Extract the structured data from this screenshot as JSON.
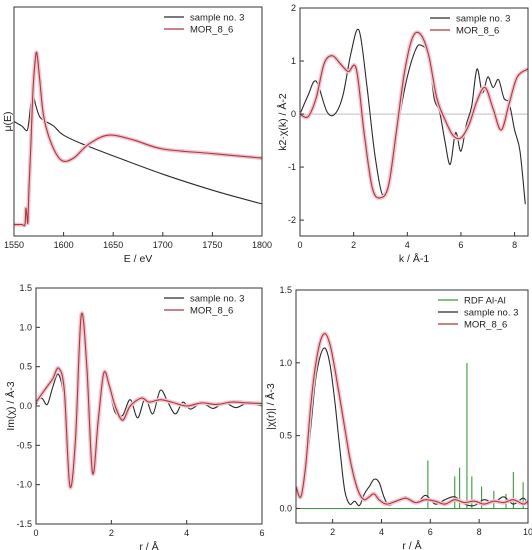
{
  "colors": {
    "black": "#2b2b2b",
    "red": "#b0383a",
    "green": "#3a9a3a",
    "halo": "#f2c4cf"
  },
  "chart_data": [
    {
      "type": "line",
      "xlabel": "E / eV",
      "ylabel": "μ(E)",
      "xlim": [
        1550,
        1800
      ],
      "ylim": [
        0.0,
        1.0
      ],
      "xticks": [
        1550,
        1600,
        1650,
        1700,
        1750,
        1800
      ],
      "yticks": [],
      "legend_position": "top-right",
      "series": [
        {
          "name": "sample no. 3",
          "color": "black",
          "x": [
            1550,
            1558,
            1563,
            1565,
            1567,
            1569,
            1572,
            1576,
            1582,
            1590,
            1600,
            1620,
            1650,
            1700,
            1750,
            1800
          ],
          "y": [
            0.5,
            0.48,
            0.46,
            0.5,
            0.58,
            0.62,
            0.57,
            0.52,
            0.5,
            0.48,
            0.44,
            0.4,
            0.35,
            0.27,
            0.2,
            0.14
          ]
        },
        {
          "name": "MOR_8_6",
          "color": "red",
          "x": [
            1550,
            1558,
            1561,
            1562,
            1563,
            1564,
            1565,
            1567,
            1569,
            1571,
            1573,
            1576,
            1580,
            1588,
            1598,
            1610,
            1625,
            1645,
            1670,
            1700,
            1750,
            1800
          ],
          "y": [
            0.05,
            0.05,
            0.05,
            0.12,
            0.09,
            0.06,
            0.2,
            0.4,
            0.62,
            0.75,
            0.8,
            0.68,
            0.52,
            0.4,
            0.33,
            0.34,
            0.4,
            0.44,
            0.42,
            0.38,
            0.36,
            0.34
          ]
        }
      ]
    },
    {
      "type": "line",
      "xlabel": "k / Å-1",
      "ylabel": "k2·χ(k) / Å-2",
      "xlim": [
        0,
        8.5
      ],
      "ylim": [
        -2.3,
        2.0
      ],
      "xticks": [
        0,
        2,
        4,
        6,
        8
      ],
      "yticks": [
        -2,
        -1,
        0,
        1,
        2
      ],
      "legend_position": "top-right",
      "series": [
        {
          "name": "sample no. 3",
          "color": "black",
          "x": [
            0,
            0.3,
            0.6,
            1.0,
            1.3,
            1.6,
            1.9,
            2.2,
            2.5,
            2.8,
            3.1,
            3.4,
            3.7,
            4.0,
            4.3,
            4.5,
            4.8,
            5.0,
            5.2,
            5.4,
            5.6,
            5.8,
            6.0,
            6.2,
            6.4,
            6.6,
            6.8,
            7.0,
            7.2,
            7.4,
            7.6,
            7.8,
            8.0,
            8.2,
            8.4
          ],
          "y": [
            0,
            0.35,
            0.62,
            0.05,
            0,
            0.35,
            1.15,
            1.58,
            0.5,
            -0.8,
            -1.55,
            -1.2,
            -0.1,
            0.7,
            1.2,
            1.3,
            1.1,
            0.3,
            0.05,
            -0.5,
            -0.95,
            -0.35,
            -0.7,
            -0.2,
            0.15,
            0.85,
            0.4,
            0.7,
            0.5,
            0.65,
            0.3,
            0.2,
            -0.3,
            -0.7,
            -1.7
          ]
        },
        {
          "name": "MOR_8_6",
          "color": "red",
          "x": [
            0,
            0.3,
            0.6,
            0.9,
            1.2,
            1.5,
            1.8,
            2.1,
            2.4,
            2.7,
            3.0,
            3.3,
            3.6,
            3.9,
            4.2,
            4.5,
            4.8,
            5.1,
            5.4,
            5.7,
            6.0,
            6.3,
            6.6,
            6.9,
            7.2,
            7.5,
            7.8,
            8.1,
            8.5
          ],
          "y": [
            0,
            -0.05,
            0.3,
            0.95,
            1.1,
            0.95,
            0.8,
            0.85,
            -0.4,
            -1.4,
            -1.58,
            -1.35,
            -0.3,
            0.8,
            1.45,
            1.5,
            1.1,
            0.3,
            -0.1,
            -0.4,
            -0.45,
            -0.2,
            0.25,
            0.5,
            0.1,
            -0.3,
            0.2,
            0.7,
            0.85
          ]
        }
      ]
    },
    {
      "type": "line",
      "xlabel": "r / Å",
      "ylabel": "Im(χ) / Å-3",
      "xlim": [
        0,
        6
      ],
      "ylim": [
        -1.5,
        1.5
      ],
      "xticks": [
        0,
        2,
        4,
        6
      ],
      "yticks": [
        -1.5,
        -1.0,
        -0.5,
        0.0,
        0.5,
        1.0,
        1.5
      ],
      "legend_position": "top-right",
      "series": [
        {
          "name": "sample no. 3",
          "color": "black",
          "x": [
            0,
            0.15,
            0.3,
            0.45,
            0.6,
            0.75,
            0.9,
            1.05,
            1.2,
            1.35,
            1.5,
            1.65,
            1.8,
            1.95,
            2.1,
            2.3,
            2.5,
            2.7,
            2.9,
            3.1,
            3.3,
            3.5,
            3.7,
            3.9,
            4.1,
            4.4,
            4.7,
            5.0,
            5.3,
            5.6,
            6.0
          ],
          "y": [
            0.02,
            0.1,
            0.02,
            0.25,
            0.4,
            0.05,
            -0.95,
            -0.35,
            1.12,
            0.6,
            -0.82,
            -0.3,
            0.4,
            0.2,
            -0.08,
            -0.12,
            0.08,
            -0.15,
            0.1,
            -0.1,
            0.2,
            0.05,
            -0.1,
            0.05,
            -0.04,
            0.04,
            -0.03,
            0.04,
            -0.02,
            0.03,
            0.0
          ]
        },
        {
          "name": "MOR_8_6",
          "color": "red",
          "x": [
            0,
            0.15,
            0.3,
            0.45,
            0.6,
            0.75,
            0.9,
            1.05,
            1.2,
            1.35,
            1.5,
            1.65,
            1.8,
            1.95,
            2.1,
            2.3,
            2.5,
            2.8,
            3.0,
            3.3,
            3.6,
            4.0,
            4.4,
            4.8,
            5.2,
            5.6,
            6.0
          ],
          "y": [
            0.05,
            0.15,
            0.25,
            0.35,
            0.48,
            0.2,
            -1.02,
            -0.4,
            1.15,
            0.5,
            -0.85,
            -0.2,
            0.42,
            0.25,
            0.0,
            -0.18,
            0.0,
            0.1,
            0.05,
            0.08,
            0.05,
            0.0,
            0.04,
            0.02,
            0.05,
            0.04,
            0.03
          ]
        }
      ]
    },
    {
      "type": "line",
      "xlabel": "r / Å",
      "ylabel": "|χ(r)| / Å-3",
      "xlim": [
        0.5,
        10
      ],
      "ylim": [
        -0.1,
        1.5
      ],
      "xticks": [
        2,
        4,
        6,
        8,
        10
      ],
      "yticks": [
        0.0,
        0.5,
        1.0,
        1.5
      ],
      "legend_position": "top-right",
      "series": [
        {
          "name": "RDF Al-Al",
          "color": "green",
          "kind": "sticks",
          "x": [
            5.9,
            7.0,
            7.2,
            7.5,
            7.7,
            8.1,
            8.6,
            9.1,
            9.4,
            9.8
          ],
          "y": [
            0.33,
            0.22,
            0.28,
            1.0,
            0.22,
            0.15,
            0.12,
            0.1,
            0.25,
            0.18
          ]
        },
        {
          "name": "sample no. 3",
          "color": "black",
          "x": [
            0.5,
            0.7,
            0.9,
            1.1,
            1.3,
            1.5,
            1.7,
            1.9,
            2.1,
            2.3,
            2.5,
            2.7,
            2.9,
            3.1,
            3.3,
            3.5,
            3.7,
            3.9,
            4.1,
            4.3,
            4.6,
            5.0,
            5.4,
            5.8,
            6.2,
            6.6,
            7.0,
            7.4,
            7.8,
            8.2,
            8.6,
            9.0,
            9.4,
            9.8,
            10.0
          ],
          "y": [
            0.12,
            0.1,
            0.25,
            0.55,
            0.88,
            1.05,
            1.1,
            0.98,
            0.72,
            0.4,
            0.12,
            0.03,
            0.05,
            0.02,
            0.1,
            0.15,
            0.2,
            0.18,
            0.08,
            0.02,
            0.05,
            0.08,
            0.03,
            0.09,
            0.03,
            0.06,
            0.08,
            0.03,
            0.02,
            0.06,
            0.04,
            0.08,
            0.03,
            0.07,
            0.03
          ]
        },
        {
          "name": "MOR_8_6",
          "color": "red",
          "x": [
            0.5,
            0.7,
            0.9,
            1.1,
            1.3,
            1.5,
            1.7,
            1.9,
            2.1,
            2.3,
            2.5,
            2.7,
            2.9,
            3.1,
            3.3,
            3.5,
            3.7,
            3.9,
            4.2,
            4.6,
            5.0,
            5.4,
            5.8,
            6.2,
            6.6,
            7.0,
            7.4,
            7.8,
            8.2,
            8.6,
            9.0,
            9.4,
            9.8,
            10.0
          ],
          "y": [
            0.15,
            0.08,
            0.3,
            0.7,
            0.98,
            1.15,
            1.2,
            1.12,
            0.95,
            0.75,
            0.55,
            0.35,
            0.2,
            0.1,
            0.06,
            0.08,
            0.1,
            0.06,
            0.03,
            0.05,
            0.07,
            0.04,
            0.06,
            0.05,
            0.03,
            0.06,
            0.04,
            0.05,
            0.03,
            0.05,
            0.04,
            0.06,
            0.03,
            0.05
          ]
        }
      ]
    }
  ]
}
